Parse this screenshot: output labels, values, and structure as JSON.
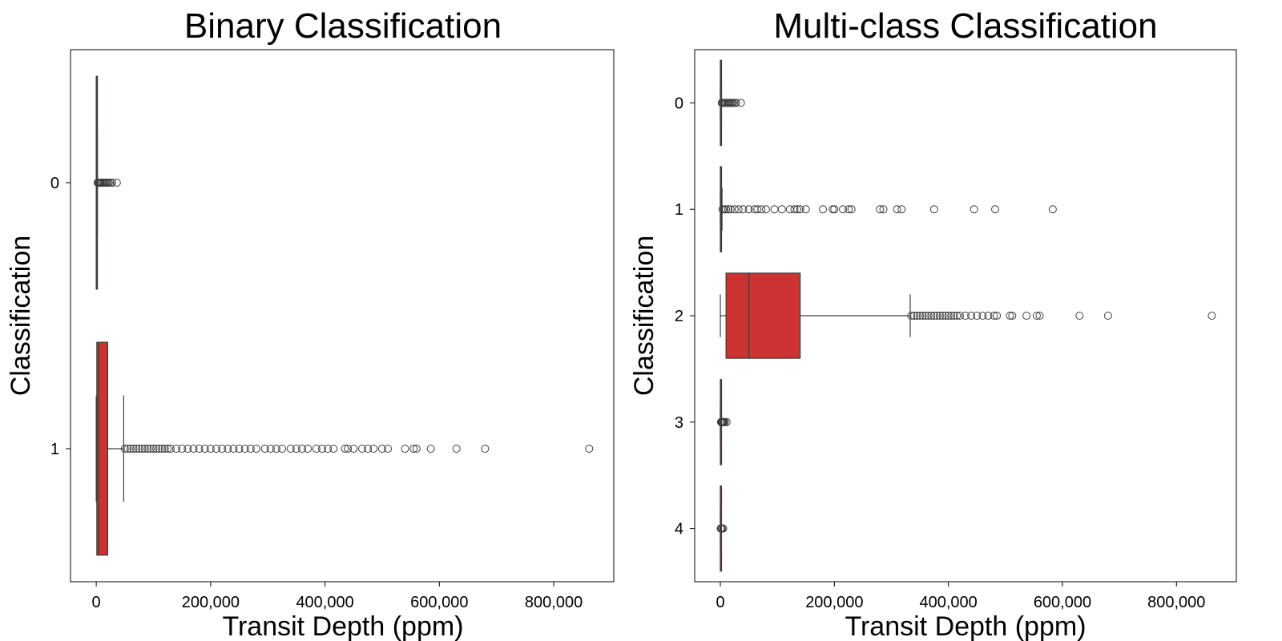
{
  "chart_data": [
    {
      "type": "boxplot",
      "orientation": "horizontal",
      "title": "Binary Classification",
      "xlabel": "Transit Depth (ppm)",
      "ylabel": "Classification",
      "xlim": [
        -45000,
        905000
      ],
      "xticks": [
        0,
        200000,
        400000,
        600000,
        800000
      ],
      "xtick_labels": [
        "0",
        "200,000",
        "400,000",
        "600,000",
        "800,000"
      ],
      "categories": [
        "0",
        "1"
      ],
      "box_color": "#cd3333",
      "line_color": "#3c3c3c",
      "grid": false,
      "boxes": [
        {
          "category": "0",
          "whisker_low": 0,
          "q1": 0,
          "median": 200,
          "q3": 600,
          "whisker_high": 2000,
          "outliers": [
            2500,
            3500,
            5000,
            6500,
            8000,
            10000,
            12000,
            14000,
            16000,
            18000,
            20000,
            22000,
            25000,
            28000,
            36000
          ]
        },
        {
          "category": "1",
          "whisker_low": 0,
          "q1": 1000,
          "median": 4000,
          "q3": 20000,
          "whisker_high": 48000,
          "outliers": [
            50000,
            55000,
            60000,
            65000,
            70000,
            75000,
            80000,
            85000,
            90000,
            95000,
            100000,
            105000,
            110000,
            115000,
            120000,
            125000,
            130000,
            140000,
            150000,
            160000,
            170000,
            180000,
            190000,
            200000,
            210000,
            220000,
            230000,
            240000,
            250000,
            260000,
            270000,
            280000,
            295000,
            305000,
            315000,
            325000,
            340000,
            350000,
            360000,
            370000,
            385000,
            395000,
            405000,
            415000,
            435000,
            440000,
            450000,
            465000,
            475000,
            485000,
            500000,
            510000,
            540000,
            555000,
            560000,
            585000,
            630000,
            680000,
            862000
          ]
        }
      ]
    },
    {
      "type": "boxplot",
      "orientation": "horizontal",
      "title": "Multi-class Classification",
      "xlabel": "Transit Depth (ppm)",
      "ylabel": "Classification",
      "xlim": [
        -45000,
        905000
      ],
      "xticks": [
        0,
        200000,
        400000,
        600000,
        800000
      ],
      "xtick_labels": [
        "0",
        "200,000",
        "400,000",
        "600,000",
        "800,000"
      ],
      "categories": [
        "0",
        "1",
        "2",
        "3",
        "4"
      ],
      "box_color": "#cd3333",
      "line_color": "#3c3c3c",
      "grid": false,
      "boxes": [
        {
          "category": "0",
          "whisker_low": 0,
          "q1": 0,
          "median": 200,
          "q3": 600,
          "whisker_high": 2000,
          "outliers": [
            2500,
            4000,
            6000,
            8000,
            10000,
            12000,
            14000,
            16000,
            18000,
            20000,
            22000,
            25000,
            28000,
            36000
          ]
        },
        {
          "category": "1",
          "whisker_low": 0,
          "q1": 0,
          "median": 300,
          "q3": 1000,
          "whisker_high": 3000,
          "outliers": [
            4000,
            7000,
            10000,
            14000,
            18000,
            25000,
            32000,
            40000,
            50000,
            60000,
            65000,
            72000,
            80000,
            95000,
            108000,
            122000,
            130000,
            135000,
            140000,
            150000,
            180000,
            197000,
            200000,
            215000,
            225000,
            230000,
            280000,
            286000,
            310000,
            318000,
            375000,
            445000,
            482000,
            583000
          ]
        },
        {
          "category": "2",
          "whisker_low": 0,
          "q1": 10000,
          "median": 50000,
          "q3": 140000,
          "whisker_high": 333000,
          "outliers": [
            335000,
            340000,
            345000,
            350000,
            355000,
            360000,
            365000,
            370000,
            375000,
            380000,
            385000,
            390000,
            395000,
            400000,
            405000,
            410000,
            415000,
            420000,
            430000,
            440000,
            450000,
            460000,
            470000,
            480000,
            485000,
            508000,
            512000,
            537000,
            555000,
            560000,
            630000,
            680000,
            862000
          ]
        },
        {
          "category": "3",
          "whisker_low": 0,
          "q1": 0,
          "median": 100,
          "q3": 300,
          "whisker_high": 800,
          "outliers": [
            1200,
            2000,
            3000,
            4000,
            5000,
            6000,
            8000,
            11000
          ]
        },
        {
          "category": "4",
          "whisker_low": 0,
          "q1": 0,
          "median": 50,
          "q3": 150,
          "whisker_high": 400,
          "outliers": [
            600,
            1500,
            3000,
            5000
          ]
        }
      ]
    }
  ]
}
